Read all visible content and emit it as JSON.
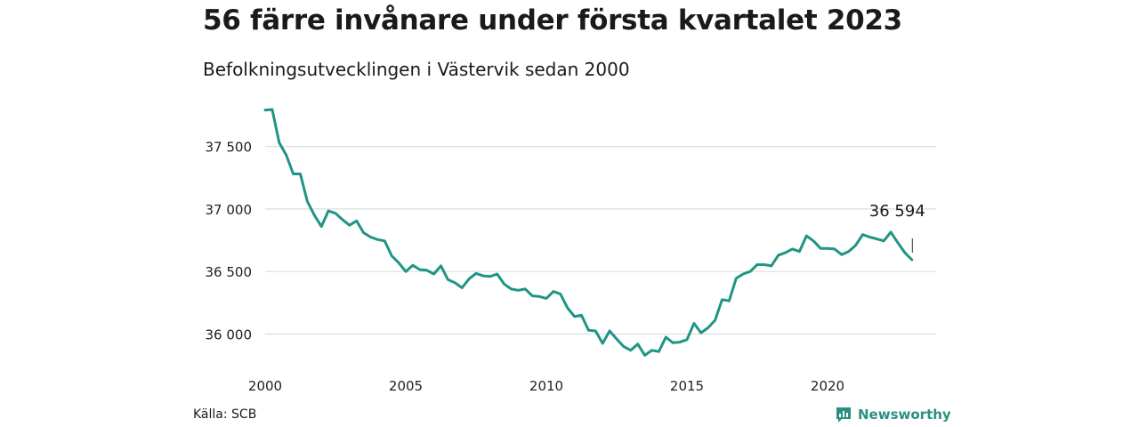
{
  "header": {
    "title": "56 färre invånare under första kvartalet 2023",
    "subtitle": "Befolkningsutvecklingen i Västervik sedan 2000"
  },
  "footer": {
    "source": "Källa: SCB",
    "brand": "Newsworthy",
    "brand_icon": "bar-chart-icon"
  },
  "colors": {
    "line": "#1f9585",
    "grid": "#dddddd",
    "brand": "#2a8f84"
  },
  "chart_data": {
    "type": "line",
    "title": "56 färre invånare under första kvartalet 2023",
    "subtitle": "Befolkningsutvecklingen i Västervik sedan 2000",
    "xlabel": "",
    "ylabel": "",
    "grid": true,
    "legend": "none",
    "ylim": [
      35820,
      37830
    ],
    "xlim": [
      2000,
      2023.25
    ],
    "x_ticks": [
      2000,
      2005,
      2010,
      2015,
      2020
    ],
    "x_tick_labels": [
      "2000",
      "2005",
      "2010",
      "2015",
      "2020"
    ],
    "y_ticks": [
      36000,
      36500,
      37000,
      37500
    ],
    "y_tick_labels": [
      "36 000",
      "36 500",
      "37 000",
      "37 500"
    ],
    "annotation": {
      "label": "36 594",
      "x": 2023.0,
      "y": 36594
    },
    "series": [
      {
        "x": [
          2000.0,
          2000.25,
          2000.5,
          2000.75,
          2001.0,
          2001.25,
          2001.5,
          2001.75,
          2002.0,
          2002.25,
          2002.5,
          2002.75,
          2003.0,
          2003.25,
          2003.5,
          2003.75,
          2004.0,
          2004.25,
          2004.5,
          2004.75,
          2005.0,
          2005.25,
          2005.5,
          2005.75,
          2006.0,
          2006.25,
          2006.5,
          2006.75,
          2007.0,
          2007.25,
          2007.5,
          2007.75,
          2008.0,
          2008.25,
          2008.5,
          2008.75,
          2009.0,
          2009.25,
          2009.5,
          2009.75,
          2010.0,
          2010.25,
          2010.5,
          2010.75,
          2011.0,
          2011.25,
          2011.5,
          2011.75,
          2012.0,
          2012.25,
          2012.5,
          2012.75,
          2013.0,
          2013.25,
          2013.5,
          2013.75,
          2014.0,
          2014.25,
          2014.5,
          2014.75,
          2015.0,
          2015.25,
          2015.5,
          2015.75,
          2016.0,
          2016.25,
          2016.5,
          2016.75,
          2017.0,
          2017.25,
          2017.5,
          2017.75,
          2018.0,
          2018.25,
          2018.5,
          2018.75,
          2019.0,
          2019.25,
          2019.5,
          2019.75,
          2020.0,
          2020.25,
          2020.5,
          2020.75,
          2021.0,
          2021.25,
          2021.5,
          2021.75,
          2022.0,
          2022.25,
          2022.5,
          2022.75,
          2023.0
        ],
        "y": [
          37790,
          37795,
          37530,
          37430,
          37280,
          37280,
          37060,
          36950,
          36860,
          36985,
          36965,
          36915,
          36870,
          36905,
          36810,
          36775,
          36755,
          36745,
          36625,
          36570,
          36500,
          36550,
          36515,
          36510,
          36480,
          36545,
          36435,
          36410,
          36370,
          36440,
          36485,
          36465,
          36460,
          36480,
          36400,
          36360,
          36350,
          36360,
          36305,
          36300,
          36285,
          36340,
          36320,
          36210,
          36140,
          36150,
          36030,
          36025,
          35925,
          36025,
          35960,
          35900,
          35870,
          35920,
          35830,
          35870,
          35860,
          35975,
          35930,
          35935,
          35955,
          36085,
          36010,
          36050,
          36110,
          36275,
          36265,
          36445,
          36480,
          36500,
          36555,
          36555,
          36545,
          36630,
          36650,
          36680,
          36660,
          36785,
          36745,
          36685,
          36685,
          36680,
          36635,
          36660,
          36710,
          36795,
          36775,
          36760,
          36745,
          36815,
          36730,
          36650,
          36594
        ]
      }
    ]
  }
}
